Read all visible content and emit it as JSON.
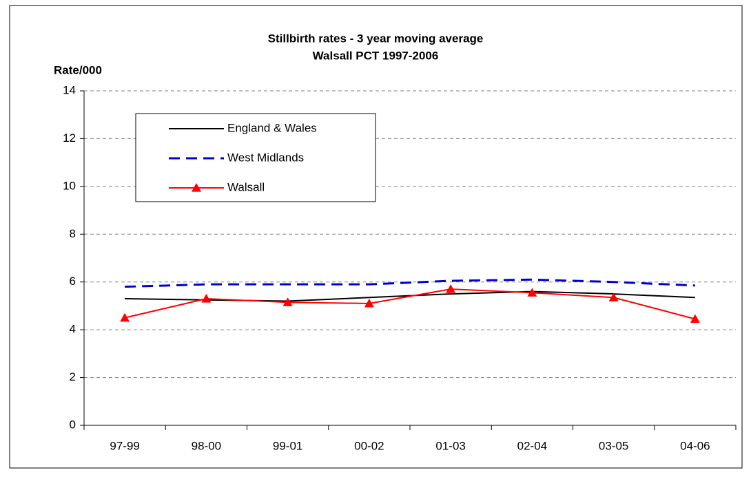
{
  "chart_data": {
    "type": "line",
    "title": "Stillbirth rates - 3 year moving average",
    "subtitle": "Walsall PCT 1997-2006",
    "y_label": "Rate/000",
    "categories": [
      "97-99",
      "98-00",
      "99-01",
      "00-02",
      "01-03",
      "02-04",
      "03-05",
      "04-06"
    ],
    "series": [
      {
        "name": "England & Wales",
        "color": "#000000",
        "line_style": "solid",
        "marker": "none",
        "values": [
          5.3,
          5.25,
          5.2,
          5.35,
          5.5,
          5.6,
          5.5,
          5.35
        ]
      },
      {
        "name": "West Midlands",
        "color": "#0000cc",
        "line_style": "dashed",
        "marker": "none",
        "values": [
          5.8,
          5.9,
          5.9,
          5.9,
          6.05,
          6.1,
          6.0,
          5.85
        ]
      },
      {
        "name": "Walsall",
        "color": "#ff0000",
        "line_style": "solid",
        "marker": "triangle",
        "values": [
          4.5,
          5.3,
          5.15,
          5.1,
          5.7,
          5.55,
          5.35,
          4.45
        ]
      }
    ],
    "ylim": [
      0,
      14
    ],
    "yticks": [
      0,
      2,
      4,
      6,
      8,
      10,
      12,
      14
    ],
    "grid": true,
    "legend": "upper left"
  }
}
